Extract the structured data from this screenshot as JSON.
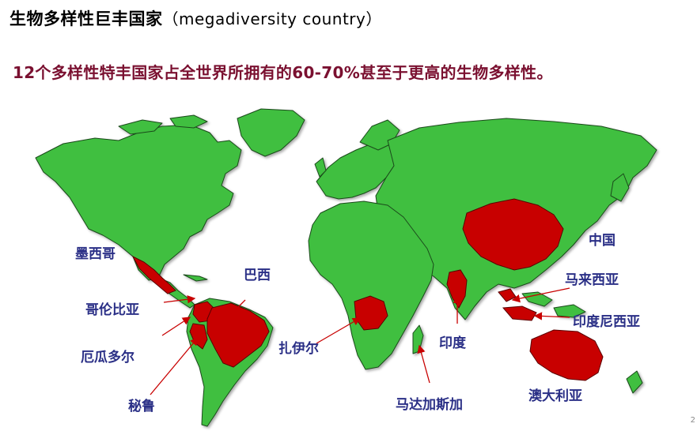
{
  "title": {
    "zh": "生物多样性巨丰国家",
    "en": "（megadiversity  country）"
  },
  "subtitle": "12个多样性特丰国家占全世界所拥有的60-70%甚至于更高的生物多样性。",
  "labels": {
    "mexico": "墨西哥",
    "brazil": "巴西",
    "colombia": "哥伦比亚",
    "ecuador": "厄瓜多尔",
    "peru": "秘鲁",
    "zaire": "扎伊尔",
    "madagascar": "马达加斯加",
    "india": "印度",
    "china": "中国",
    "malaysia": "马来西亚",
    "indonesia": "印度尼西亚",
    "australia": "澳大利亚"
  },
  "colors": {
    "land": "#3fbf3f",
    "highlight": "#c80000",
    "border": "#1a4a1a",
    "label": "#2a2f86",
    "subtitle": "#7a1030"
  },
  "page_number": "2"
}
